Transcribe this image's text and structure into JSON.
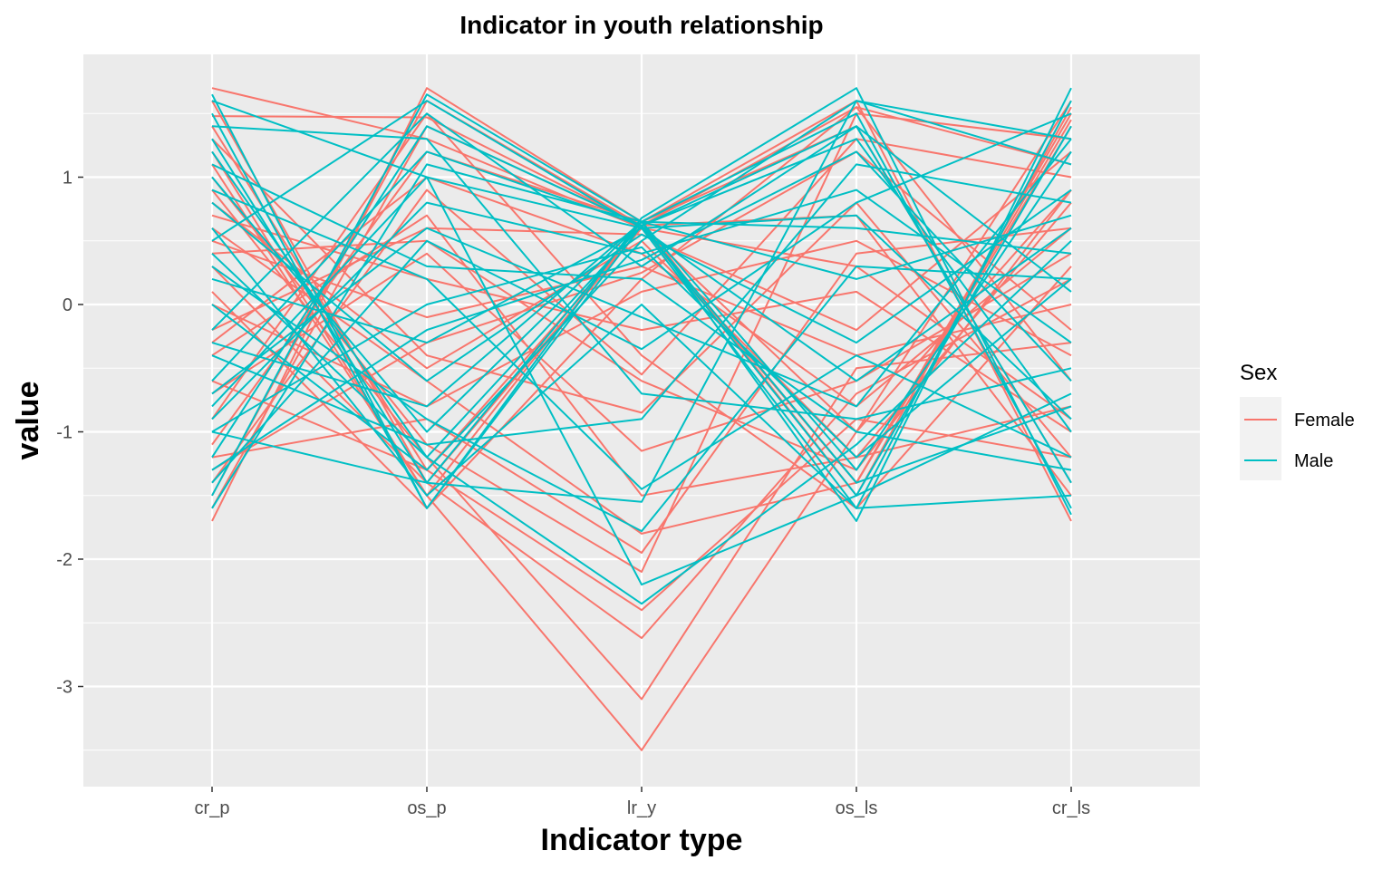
{
  "chart_data": {
    "type": "line",
    "subtype": "parallel-coordinates",
    "title": "Indicator in youth relationship",
    "xlabel": "Indicator type",
    "ylabel": "value",
    "categories": [
      "cr_p",
      "os_p",
      "lr_y",
      "os_ls",
      "cr_ls"
    ],
    "ylim": [
      -3.5,
      1.75
    ],
    "yticks": [
      -3,
      -2,
      -1,
      0,
      1
    ],
    "ytick_labels": [
      "-3",
      "-2",
      "-1",
      "0",
      "1"
    ],
    "grid": true,
    "legend": {
      "title": "Sex",
      "position": "right",
      "entries": [
        {
          "label": "Female",
          "color": "#F8766D"
        },
        {
          "label": "Male",
          "color": "#00BFC4"
        }
      ]
    },
    "series": [
      {
        "group": "Female",
        "values": [
          1.48,
          1.47,
          0.62,
          1.55,
          1.1
        ]
      },
      {
        "group": "Female",
        "values": [
          1.7,
          1.3,
          0.6,
          -1.4,
          1.45
        ]
      },
      {
        "group": "Female",
        "values": [
          -1.7,
          1.7,
          0.65,
          1.6,
          -1.7
        ]
      },
      {
        "group": "Female",
        "values": [
          1.2,
          -1.5,
          -3.5,
          -1.0,
          0.9
        ]
      },
      {
        "group": "Female",
        "values": [
          0.9,
          -1.2,
          -3.1,
          -0.5,
          -0.3
        ]
      },
      {
        "group": "Female",
        "values": [
          0.3,
          -1.4,
          -2.62,
          -0.7,
          0.2
        ]
      },
      {
        "group": "Female",
        "values": [
          -0.6,
          -1.3,
          -2.4,
          -0.9,
          -1.2
        ]
      },
      {
        "group": "Female",
        "values": [
          1.0,
          -1.1,
          -2.1,
          1.5,
          1.3
        ]
      },
      {
        "group": "Female",
        "values": [
          -1.2,
          -0.9,
          -1.95,
          0.4,
          0.6
        ]
      },
      {
        "group": "Female",
        "values": [
          0.6,
          -0.6,
          -1.8,
          -1.4,
          1.5
        ]
      },
      {
        "group": "Female",
        "values": [
          -0.4,
          0.7,
          -1.5,
          -1.2,
          -0.8
        ]
      },
      {
        "group": "Female",
        "values": [
          -0.7,
          0.4,
          -1.15,
          -0.6,
          0.4
        ]
      },
      {
        "group": "Female",
        "values": [
          1.3,
          -0.4,
          -0.85,
          0.8,
          -1.2
        ]
      },
      {
        "group": "Female",
        "values": [
          -1.4,
          0.9,
          -0.55,
          1.3,
          1.0
        ]
      },
      {
        "group": "Female",
        "values": [
          -0.9,
          1.5,
          -0.4,
          -1.6,
          0.3
        ]
      },
      {
        "group": "Female",
        "values": [
          0.1,
          -1.6,
          0.2,
          1.55,
          -0.6
        ]
      },
      {
        "group": "Female",
        "values": [
          -1.1,
          1.2,
          0.65,
          -1.5,
          1.55
        ]
      },
      {
        "group": "Female",
        "values": [
          1.4,
          -1.3,
          0.6,
          0.3,
          -0.9
        ]
      },
      {
        "group": "Female",
        "values": [
          -0.2,
          0.6,
          0.55,
          -0.2,
          1.2
        ]
      },
      {
        "group": "Female",
        "values": [
          0.8,
          -0.5,
          0.5,
          -1.2,
          0.8
        ]
      },
      {
        "group": "Female",
        "values": [
          -1.5,
          1.6,
          0.62,
          0.7,
          -1.5
        ]
      },
      {
        "group": "Female",
        "values": [
          0.5,
          -0.1,
          0.3,
          -0.4,
          0.0
        ]
      },
      {
        "group": "Female",
        "values": [
          1.1,
          -1.5,
          0.65,
          1.4,
          -1.4
        ]
      },
      {
        "group": "Female",
        "values": [
          -0.3,
          1.0,
          0.4,
          -0.8,
          0.6
        ]
      },
      {
        "group": "Female",
        "values": [
          0.0,
          -0.8,
          0.1,
          0.5,
          -0.4
        ]
      },
      {
        "group": "Female",
        "values": [
          -1.6,
          1.4,
          0.62,
          -1.4,
          1.4
        ]
      },
      {
        "group": "Female",
        "values": [
          0.7,
          0.2,
          -0.2,
          0.1,
          -1.0
        ]
      },
      {
        "group": "Female",
        "values": [
          1.6,
          -1.4,
          0.6,
          -1.0,
          1.6
        ]
      },
      {
        "group": "Female",
        "values": [
          -1.3,
          -0.3,
          0.25,
          1.2,
          -0.2
        ]
      },
      {
        "group": "Female",
        "values": [
          0.4,
          0.5,
          -0.6,
          -1.3,
          0.9
        ]
      },
      {
        "group": "Male",
        "values": [
          1.65,
          -1.6,
          0.68,
          1.7,
          -1.65
        ]
      },
      {
        "group": "Male",
        "values": [
          -1.5,
          1.65,
          0.65,
          -1.7,
          1.7
        ]
      },
      {
        "group": "Male",
        "values": [
          1.2,
          -1.2,
          -2.35,
          -1.1,
          0.5
        ]
      },
      {
        "group": "Male",
        "values": [
          -0.8,
          1.0,
          -2.2,
          -1.5,
          -0.7
        ]
      },
      {
        "group": "Male",
        "values": [
          0.3,
          -0.9,
          -1.78,
          0.3,
          0.2
        ]
      },
      {
        "group": "Male",
        "values": [
          -1.0,
          -1.4,
          -1.55,
          1.6,
          1.3
        ]
      },
      {
        "group": "Male",
        "values": [
          0.9,
          0.2,
          -1.45,
          -0.4,
          -1.2
        ]
      },
      {
        "group": "Male",
        "values": [
          -0.4,
          -1.1,
          -0.9,
          1.1,
          0.8
        ]
      },
      {
        "group": "Male",
        "values": [
          1.4,
          1.3,
          -0.7,
          -0.9,
          -0.5
        ]
      },
      {
        "group": "Male",
        "values": [
          -1.4,
          0.5,
          -0.35,
          0.8,
          1.5
        ]
      },
      {
        "group": "Male",
        "values": [
          0.6,
          -1.5,
          0.0,
          -1.6,
          -1.5
        ]
      },
      {
        "group": "Male",
        "values": [
          -0.2,
          1.5,
          0.3,
          1.4,
          0.1
        ]
      },
      {
        "group": "Male",
        "values": [
          1.0,
          -1.0,
          0.65,
          -1.3,
          1.2
        ]
      },
      {
        "group": "Male",
        "values": [
          -0.6,
          1.2,
          0.62,
          1.3,
          -1.0
        ]
      },
      {
        "group": "Male",
        "values": [
          0.2,
          -0.3,
          0.6,
          -0.6,
          0.6
        ]
      },
      {
        "group": "Male",
        "values": [
          -1.6,
          1.1,
          0.65,
          1.5,
          -1.6
        ]
      },
      {
        "group": "Male",
        "values": [
          1.5,
          -1.6,
          0.62,
          -1.5,
          1.4
        ]
      },
      {
        "group": "Male",
        "values": [
          -0.9,
          0.8,
          0.4,
          0.9,
          -0.3
        ]
      },
      {
        "group": "Male",
        "values": [
          0.8,
          -0.6,
          0.55,
          -0.3,
          0.9
        ]
      },
      {
        "group": "Male",
        "values": [
          -1.2,
          1.4,
          0.62,
          -1.4,
          -0.8
        ]
      },
      {
        "group": "Male",
        "values": [
          0.0,
          -1.3,
          0.5,
          1.6,
          1.1
        ]
      },
      {
        "group": "Male",
        "values": [
          1.1,
          0.3,
          0.2,
          -1.0,
          -1.3
        ]
      },
      {
        "group": "Male",
        "values": [
          -0.3,
          -0.8,
          0.65,
          0.6,
          0.4
        ]
      },
      {
        "group": "Male",
        "values": [
          0.5,
          1.6,
          0.6,
          -1.6,
          1.6
        ]
      },
      {
        "group": "Male",
        "values": [
          -1.3,
          -0.2,
          0.35,
          1.2,
          -0.6
        ]
      },
      {
        "group": "Male",
        "values": [
          1.3,
          -1.4,
          0.65,
          0.2,
          0.7
        ]
      },
      {
        "group": "Male",
        "values": [
          -0.7,
          0.6,
          -0.1,
          -0.8,
          1.3
        ]
      },
      {
        "group": "Male",
        "values": [
          0.4,
          -1.2,
          0.62,
          1.4,
          -1.4
        ]
      },
      {
        "group": "Male",
        "values": [
          -1.0,
          0.0,
          0.45,
          -1.2,
          0.2
        ]
      },
      {
        "group": "Male",
        "values": [
          1.6,
          1.0,
          0.6,
          0.7,
          -0.9
        ]
      }
    ]
  }
}
